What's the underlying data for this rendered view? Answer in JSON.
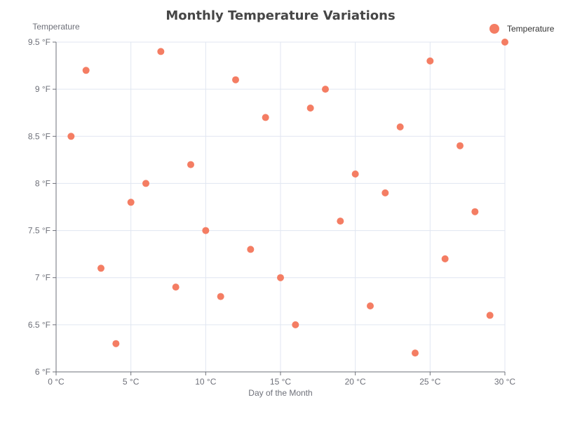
{
  "chart_data": {
    "type": "scatter",
    "title": "Monthly Temperature Variations",
    "xlabel": "Day of the Month",
    "ylabel": "Temperature",
    "x_unit": " °C",
    "y_unit": " °F",
    "xlim": [
      0,
      30
    ],
    "ylim": [
      6,
      9.5
    ],
    "x_ticks": [
      "0 °C",
      "5 °C",
      "10 °C",
      "15 °C",
      "20 °C",
      "25 °C",
      "30 °C"
    ],
    "y_ticks": [
      "6 °F",
      "6.5 °F",
      "7 °F",
      "7.5 °F",
      "8 °F",
      "8.5 °F",
      "9 °F",
      "9.5 °F"
    ],
    "grid": true,
    "legend_position": "top-right",
    "series": [
      {
        "name": "Temperature",
        "color": "#f47d63",
        "points": [
          [
            1,
            8.5
          ],
          [
            2,
            9.2
          ],
          [
            3,
            7.1
          ],
          [
            4,
            6.3
          ],
          [
            5,
            7.8
          ],
          [
            6,
            8.0
          ],
          [
            7,
            9.4
          ],
          [
            8,
            6.9
          ],
          [
            9,
            8.2
          ],
          [
            10,
            7.5
          ],
          [
            11,
            6.8
          ],
          [
            12,
            9.1
          ],
          [
            13,
            7.3
          ],
          [
            14,
            8.7
          ],
          [
            15,
            7.0
          ],
          [
            16,
            6.5
          ],
          [
            17,
            8.8
          ],
          [
            18,
            9.0
          ],
          [
            19,
            7.6
          ],
          [
            20,
            8.1
          ],
          [
            21,
            6.7
          ],
          [
            22,
            7.9
          ],
          [
            23,
            8.6
          ],
          [
            24,
            6.2
          ],
          [
            25,
            9.3
          ],
          [
            26,
            7.2
          ],
          [
            27,
            8.4
          ],
          [
            28,
            7.7
          ],
          [
            29,
            6.6
          ],
          [
            30,
            9.5
          ]
        ]
      }
    ]
  }
}
